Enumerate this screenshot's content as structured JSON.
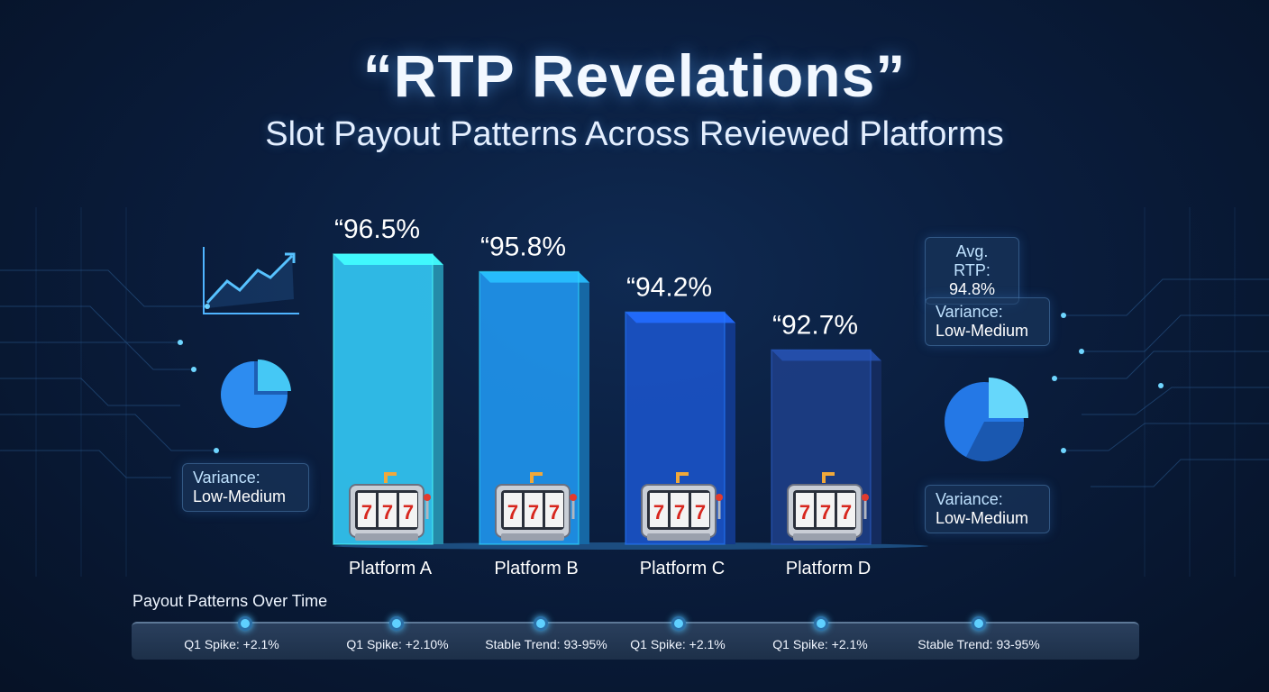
{
  "header": {
    "title": "“RTP Revelations”",
    "subtitle": "Slot Payout Patterns Across Reviewed Platforms"
  },
  "chart_data": {
    "type": "bar",
    "title": "“RTP Revelations”",
    "subtitle": "Slot Payout Patterns Across Reviewed Platforms",
    "categories": [
      "Platform A",
      "Platform B",
      "Platform C",
      "Platform D"
    ],
    "values": [
      96.5,
      95.8,
      94.2,
      92.7
    ],
    "value_labels": [
      "“96.5%",
      "“95.8%",
      "“94.2%",
      "“92.7%"
    ],
    "xlabel": "",
    "ylabel": "",
    "colors": [
      "#33c6f2",
      "#1f94ec",
      "#1a52c6",
      "#1d3e86"
    ],
    "grid": false,
    "legend": "none"
  },
  "left_card": {
    "label": "Variance:",
    "value": "Low-Medium"
  },
  "right_cards": {
    "avg": {
      "label": "Avg. RTP:",
      "value": "94.8%"
    },
    "variance_top": {
      "label": "Variance:",
      "value": "Low-Medium"
    },
    "variance_bottom": {
      "label": "Variance:",
      "value": "Low-Medium"
    }
  },
  "timeline": {
    "title": "Payout Patterns Over Time",
    "items": [
      {
        "label": "Q1 Spike: +2.1%"
      },
      {
        "label": "Q1 Spike: +2.10%"
      },
      {
        "label": "Stable Trend: 93-95%"
      },
      {
        "label": "Q1 Spike: +2.1%"
      },
      {
        "label": "Q1 Spike: +2.1%"
      },
      {
        "label": "Stable Trend: 93-95%"
      }
    ]
  },
  "icons": [
    "line-chart-icon",
    "pie-chart-icon",
    "slot-machine-icon"
  ],
  "colors": {
    "accent": "#4fc3ff",
    "background": "#0a1d3d"
  }
}
